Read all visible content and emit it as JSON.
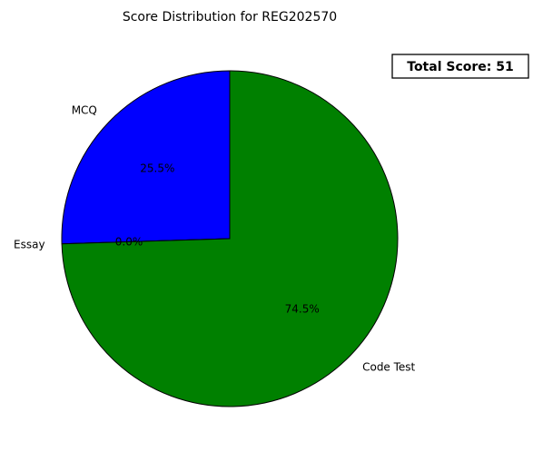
{
  "chart_data": {
    "type": "pie",
    "title": "Score Distribution for REG202570",
    "start_angle_deg": 90,
    "direction": "counterclockwise",
    "slices": [
      {
        "label": "MCQ",
        "value": 13,
        "percent_label": "25.5%",
        "color": "#0000ff"
      },
      {
        "label": "Essay",
        "value": 0,
        "percent_label": "0.0%",
        "color": "#ff0000"
      },
      {
        "label": "Code Test",
        "value": 38,
        "percent_label": "74.5%",
        "color": "#008000"
      }
    ],
    "edge_color": "#000000",
    "annotation": {
      "text": "Total Score: 51",
      "placement": "top-right",
      "box": true
    }
  }
}
